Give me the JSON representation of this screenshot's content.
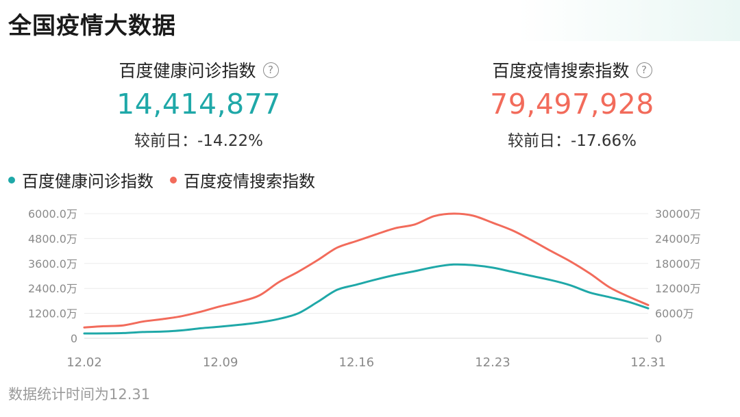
{
  "page": {
    "title": "全国疫情大数据",
    "footnote": "数据统计时间为12.31"
  },
  "stats": [
    {
      "label": "百度健康问诊指数",
      "value": "14,414,877",
      "change": "较前日：-14.22%",
      "color": "#1fa8a8"
    },
    {
      "label": "百度疫情搜索指数",
      "value": "79,497,928",
      "change": "较前日：-17.66%",
      "color": "#f26b5b"
    }
  ],
  "icons": {
    "help": "?"
  },
  "chart_data": {
    "type": "line",
    "x": [
      "12.02",
      "12.03",
      "12.04",
      "12.05",
      "12.06",
      "12.07",
      "12.08",
      "12.09",
      "12.10",
      "12.11",
      "12.12",
      "12.13",
      "12.14",
      "12.15",
      "12.16",
      "12.17",
      "12.18",
      "12.19",
      "12.20",
      "12.21",
      "12.22",
      "12.23",
      "12.24",
      "12.25",
      "12.26",
      "12.27",
      "12.28",
      "12.29",
      "12.30",
      "12.31"
    ],
    "xticks": [
      "12.02",
      "12.09",
      "12.16",
      "12.23",
      "12.31"
    ],
    "series": [
      {
        "name": "百度健康问诊指数",
        "color": "#1fa8a8",
        "axis": "left",
        "values": [
          230,
          235,
          250,
          300,
          320,
          380,
          480,
          560,
          650,
          760,
          930,
          1200,
          1750,
          2330,
          2580,
          2830,
          3050,
          3230,
          3430,
          3550,
          3520,
          3400,
          3200,
          3000,
          2800,
          2550,
          2200,
          1980,
          1750,
          1440
        ]
      },
      {
        "name": "百度疫情搜索指数",
        "color": "#f26b5b",
        "axis": "right",
        "values": [
          2600,
          2900,
          3100,
          4000,
          4600,
          5300,
          6400,
          7700,
          8800,
          10300,
          13500,
          16000,
          18800,
          21800,
          23400,
          25000,
          26500,
          27400,
          29400,
          30000,
          29500,
          27800,
          26000,
          23600,
          21000,
          18500,
          15600,
          12300,
          10000,
          8000
        ]
      }
    ],
    "y_left": {
      "ticks": [
        "0",
        "1200.0万",
        "2400.0万",
        "3600.0万",
        "4800.0万",
        "6000.0万"
      ],
      "range": [
        0,
        6000
      ],
      "unit": "万"
    },
    "y_right": {
      "ticks": [
        "0",
        "6000万",
        "12000万",
        "18000万",
        "24000万",
        "30000万"
      ],
      "range": [
        0,
        30000
      ],
      "unit": "万"
    },
    "grid": true,
    "legend_position": "top-left"
  }
}
